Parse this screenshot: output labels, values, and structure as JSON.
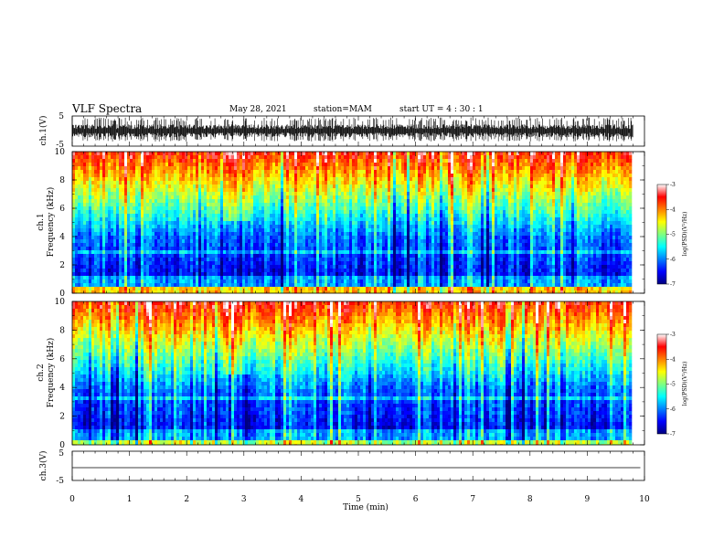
{
  "header": {
    "title": "VLF Spectra",
    "date": "May 28, 2021",
    "station": "station=MAM",
    "start": "start  UT =  4 : 30 : 1"
  },
  "chart_data": [
    {
      "type": "line",
      "name": "ch1-waveform",
      "ylabel": "ch.1(V)",
      "yticks": [
        "5",
        "-5"
      ],
      "ylim": [
        -5,
        5
      ],
      "xlim": [
        0,
        10
      ],
      "data_end_min": 9.8,
      "amplitude_range": [
        -3.5,
        4.5
      ]
    },
    {
      "type": "heatmap",
      "name": "ch1-spectrogram",
      "ylabel": "ch.1\nFrequency (kHz)",
      "ylabel_lines": [
        "ch.1",
        "Frequency (kHz)"
      ],
      "yticks": [
        "0",
        "2",
        "4",
        "6",
        "8",
        "10"
      ],
      "ylim": [
        0,
        10
      ],
      "xlim": [
        0,
        10
      ],
      "data_end_min": 9.8,
      "colorbar": {
        "label": "log(PSD)(V²/Hz)",
        "ticks": [
          "-3",
          "-4",
          "-5",
          "-6",
          "-7"
        ],
        "range": [
          -7,
          -3
        ],
        "colormap": [
          "#00007f",
          "#0000ff",
          "#0080ff",
          "#00ffff",
          "#80ff80",
          "#ffff00",
          "#ff8000",
          "#ff0000",
          "#ffffff"
        ]
      }
    },
    {
      "type": "heatmap",
      "name": "ch2-spectrogram",
      "ylabel": "ch.2\nFrequency (kHz)",
      "ylabel_lines": [
        "ch.2",
        "Frequency (kHz)"
      ],
      "yticks": [
        "0",
        "2",
        "4",
        "6",
        "8",
        "10"
      ],
      "ylim": [
        0,
        10
      ],
      "xlim": [
        0,
        10
      ],
      "data_end_min": 9.8,
      "colorbar": {
        "label": "log(PSD)(V²/Hz)",
        "ticks": [
          "-3",
          "-4",
          "-5",
          "-6",
          "-7"
        ],
        "range": [
          -7,
          -3
        ],
        "colormap": [
          "#00007f",
          "#0000ff",
          "#0080ff",
          "#00ffff",
          "#80ff80",
          "#ffff00",
          "#ff8000",
          "#ff0000",
          "#ffffff"
        ]
      }
    },
    {
      "type": "line",
      "name": "ch3-waveform",
      "ylabel": "ch.3(V)",
      "yticks": [
        "5",
        "-5"
      ],
      "ylim": [
        -5,
        5
      ],
      "xlim": [
        0,
        10
      ],
      "data_end_min": 9.8,
      "constant_value": 0
    }
  ],
  "x_axis": {
    "label": "Time (min)",
    "ticks": [
      "0",
      "1",
      "2",
      "3",
      "4",
      "5",
      "6",
      "7",
      "8",
      "9",
      "10"
    ]
  }
}
